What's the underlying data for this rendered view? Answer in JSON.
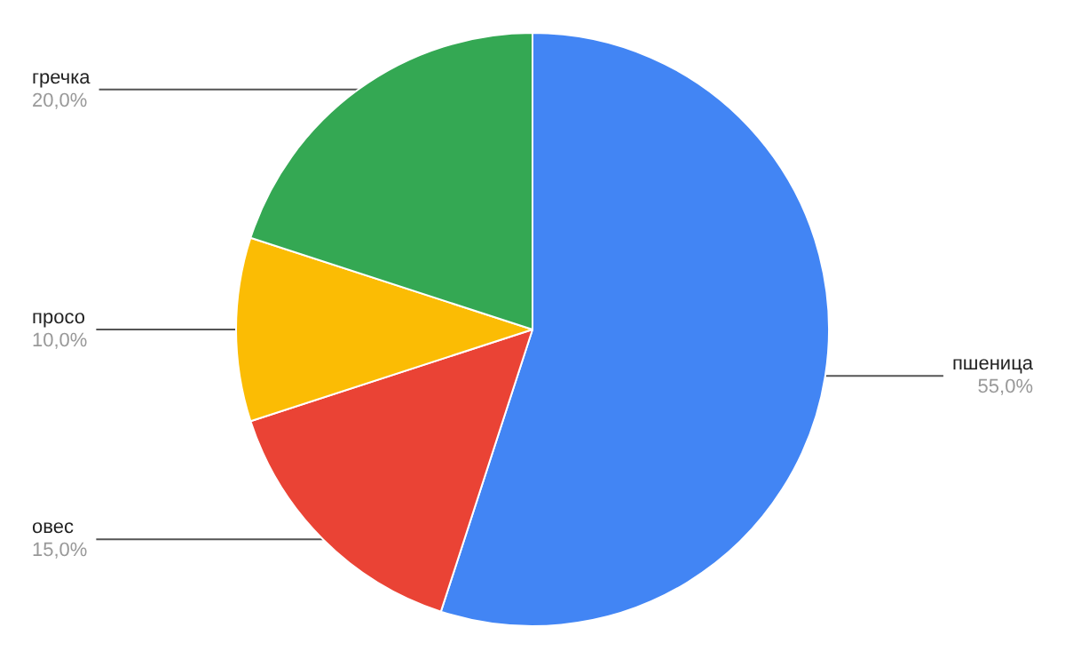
{
  "chart_data": {
    "type": "pie",
    "categories": [
      "пшеница",
      "овес",
      "просо",
      "гречка"
    ],
    "values": [
      55,
      15,
      10,
      20
    ],
    "colors": [
      "#4285f4",
      "#ea4335",
      "#fbbc04",
      "#34a853"
    ],
    "value_labels": [
      "55,0%",
      "15,0%",
      "10,0%",
      "20,0%"
    ],
    "legend": false
  }
}
